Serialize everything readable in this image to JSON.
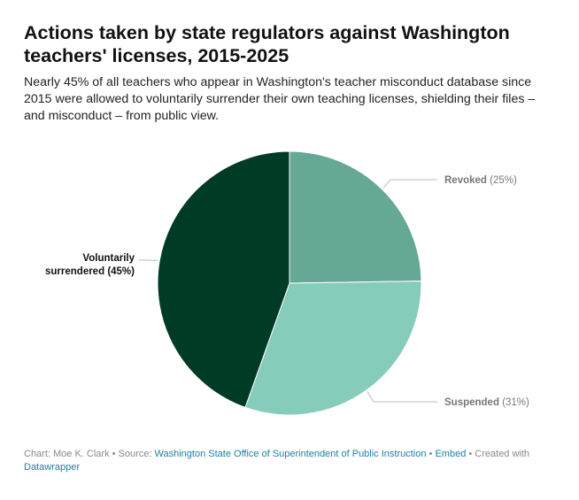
{
  "header": {
    "title": "Actions taken by state regulators against Washington teachers' licenses, 2015-2025",
    "subtitle": "Nearly 45% of all teachers who appear in Washington's teacher misconduct database since 2015 were allowed to voluntarily surrender their own teaching licenses, shielding their files – and misconduct – from public view."
  },
  "chart_data": {
    "type": "pie",
    "title": "Actions taken by state regulators against Washington teachers' licenses, 2015-2025",
    "slices": [
      {
        "label": "Revoked",
        "value": 25,
        "value_label": "(25%)",
        "color": "#66a896"
      },
      {
        "label": "Suspended",
        "value": 31,
        "value_label": "(31%)",
        "color": "#86ccba"
      },
      {
        "label": "Voluntarily surrendered",
        "label_lines": [
          "Voluntarily",
          "surrendered"
        ],
        "value": 45,
        "value_label": "(45%)",
        "color": "#003b25"
      }
    ],
    "start": "12 o'clock",
    "direction": "clockwise"
  },
  "footer": {
    "chart_by": "Chart: Moe K. Clark",
    "sep1": " • Source: ",
    "source": "Washington State Office of Superintendent of Public Instruction",
    "sep2": " • ",
    "embed": "Embed",
    "sep3": " • Created with ",
    "tool": "Datawrapper"
  },
  "colors": {
    "label_dark": "#111111",
    "label_muted": "#777777",
    "leader": "#bbbbbb",
    "link": "#1d81a2"
  }
}
